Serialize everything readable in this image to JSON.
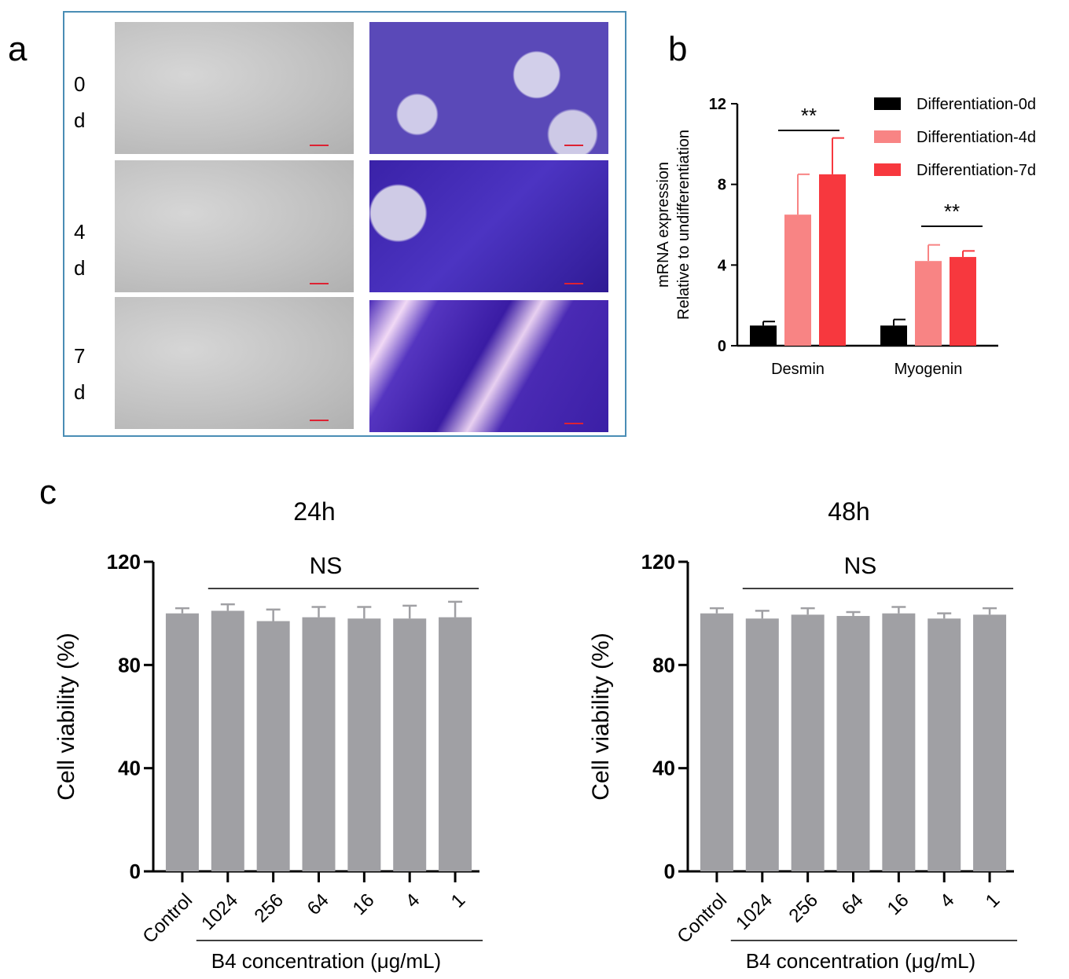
{
  "panel_letters": {
    "a": "a",
    "b": "b",
    "c": "c"
  },
  "panel_a": {
    "days": [
      {
        "top": "0",
        "bottom": "d"
      },
      {
        "top": "4",
        "bottom": "d"
      },
      {
        "top": "7",
        "bottom": "d"
      }
    ]
  },
  "colors": {
    "frame": "#4a8db5",
    "d0": "#000000",
    "d4": "#f88484",
    "d7": "#f7383e",
    "gray_bar": "#a0a0a4"
  },
  "chart_data": [
    {
      "id": "b",
      "type": "bar",
      "categories": [
        "Desmin",
        "Myogenin"
      ],
      "ylabel": [
        "mRNA expression",
        "Relative to undifferentiation"
      ],
      "ylim": [
        0,
        12
      ],
      "yticks": [
        "0",
        "4",
        "8",
        "12"
      ],
      "legend_position": "top-right",
      "series": [
        {
          "name": "Differentiation-0d",
          "color": "#000000",
          "values": [
            1.0,
            1.0
          ],
          "errors": [
            0.2,
            0.3
          ]
        },
        {
          "name": "Differentiation-4d",
          "color": "#f88484",
          "values": [
            6.5,
            4.2
          ],
          "errors": [
            2.0,
            0.8
          ]
        },
        {
          "name": "Differentiation-7d",
          "color": "#f7383e",
          "values": [
            8.5,
            4.4
          ],
          "errors": [
            1.8,
            0.3
          ]
        }
      ],
      "annotations": [
        "**",
        "**"
      ]
    },
    {
      "id": "c-24h",
      "type": "bar",
      "title": "24h",
      "categories": [
        "Control",
        "1024",
        "256",
        "64",
        "16",
        "4",
        "1"
      ],
      "values": [
        100,
        101,
        97,
        98.5,
        98,
        98,
        98.5
      ],
      "errors": [
        2,
        2.5,
        4.5,
        4,
        4.5,
        5,
        6
      ],
      "ylabel": "Cell  viability (%)",
      "xlabel": "B4 concentration (μg/mL)",
      "ylim": [
        0,
        120
      ],
      "yticks": [
        "0",
        "40",
        "80",
        "120"
      ],
      "annotation": "NS",
      "color": "#a0a0a4"
    },
    {
      "id": "c-48h",
      "type": "bar",
      "title": "48h",
      "categories": [
        "Control",
        "1024",
        "256",
        "64",
        "16",
        "4",
        "1"
      ],
      "values": [
        100,
        98,
        99.5,
        99,
        100,
        98,
        99.5
      ],
      "errors": [
        2,
        3,
        2.5,
        1.5,
        2.5,
        2,
        2.5
      ],
      "ylabel": "Cell  viability (%)",
      "xlabel": "B4 concentration (μg/mL)",
      "ylim": [
        0,
        120
      ],
      "yticks": [
        "0",
        "40",
        "80",
        "120"
      ],
      "annotation": "NS",
      "color": "#a0a0a4"
    }
  ]
}
